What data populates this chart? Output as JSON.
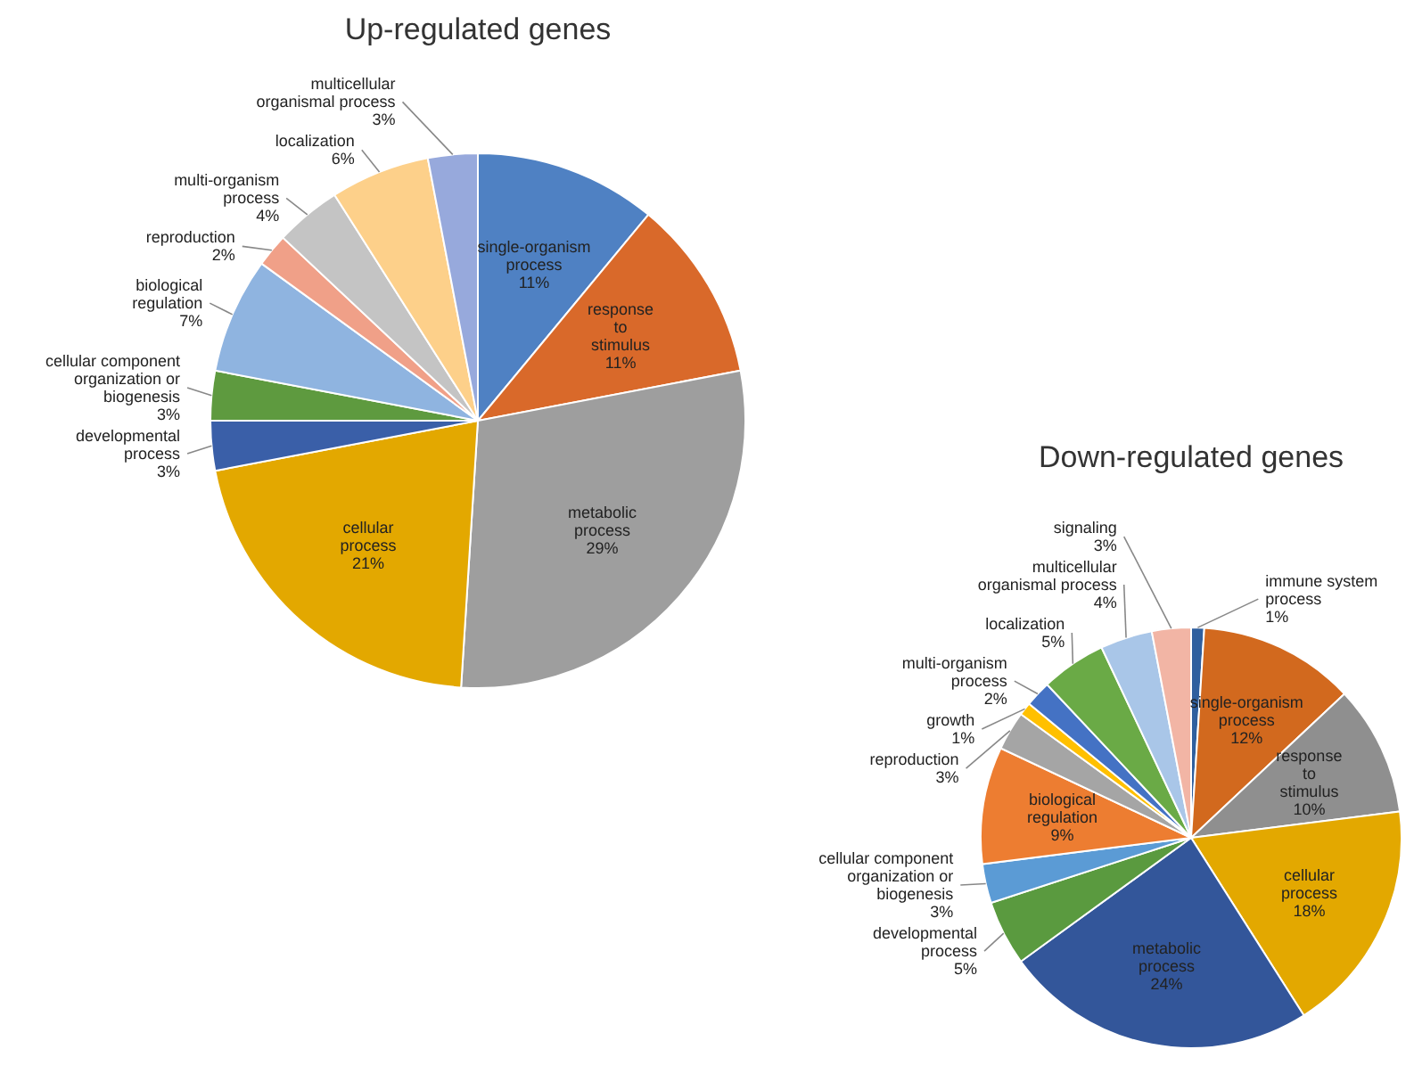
{
  "chart_data": [
    {
      "type": "pie",
      "title": "Up-regulated genes",
      "categories": [
        "single-organism process",
        "response to stimulus",
        "metabolic process",
        "cellular process",
        "developmental process",
        "cellular component organization or biogenesis",
        "biological regulation",
        "reproduction",
        "multi-organism process",
        "localization",
        "multicellular organismal process"
      ],
      "values": [
        11,
        11,
        29,
        21,
        3,
        3,
        7,
        2,
        4,
        6,
        3
      ],
      "value_labels": [
        "11%",
        "11%",
        "29%",
        "21%",
        "3%",
        "3%",
        "7%",
        "2%",
        "4%",
        "6%",
        "3%"
      ],
      "colors": [
        "#4f81c3",
        "#d9692a",
        "#9e9e9e",
        "#e3a800",
        "#3a5fa8",
        "#5e9a3f",
        "#8fb4e0",
        "#f0a088",
        "#c4c4c4",
        "#fdd08a",
        "#97a9dc"
      ]
    },
    {
      "type": "pie",
      "title": "Down-regulated genes",
      "categories": [
        "immune system process",
        "single-organism process",
        "response to stimulus",
        "cellular process",
        "metabolic process",
        "developmental process",
        "cellular component organization or biogenesis",
        "biological regulation",
        "reproduction",
        "growth",
        "multi-organism process",
        "localization",
        "multicellular organismal process",
        "signaling"
      ],
      "values": [
        1,
        12,
        10,
        18,
        24,
        5,
        3,
        9,
        3,
        1,
        2,
        5,
        4,
        3
      ],
      "value_labels": [
        "1%",
        "12%",
        "10%",
        "18%",
        "24%",
        "5%",
        "3%",
        "9%",
        "3%",
        "1%",
        "2%",
        "5%",
        "4%",
        "3%"
      ],
      "colors": [
        "#2f5f9e",
        "#d2691e",
        "#8f8f8f",
        "#e3a800",
        "#33569a",
        "#5a9a3f",
        "#5b9bd5",
        "#ed7d31",
        "#a5a5a5",
        "#ffc000",
        "#4472c4",
        "#6aaa46",
        "#a9c6e8",
        "#f2b5a5"
      ]
    }
  ]
}
